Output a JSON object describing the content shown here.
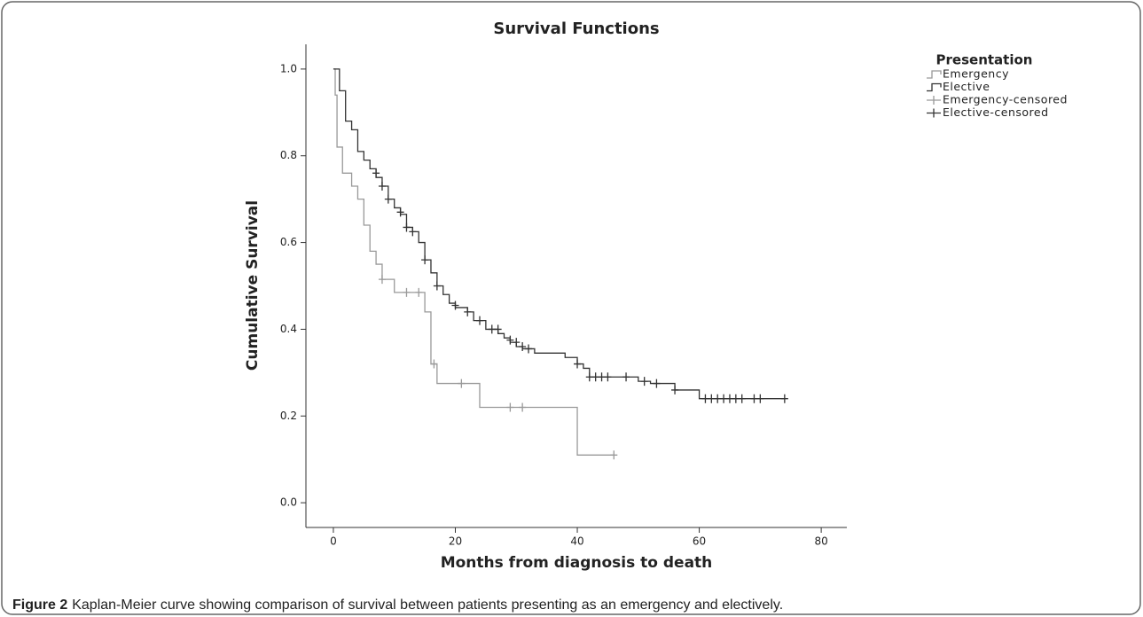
{
  "chart_data": {
    "type": "step",
    "title": "Survival Functions",
    "x_label": "Months from diagnosis to death",
    "y_label": "Cumulative Survival",
    "legend_title": "Presentation",
    "legend_position": "upper right",
    "caption_label": "Figure 2",
    "caption": "Kaplan-Meier curve showing comparison of survival between patients presenting as an emergency and electively.",
    "xlim": [
      -4.5,
      84.2
    ],
    "ylim": [
      -0.057,
      1.057
    ],
    "xticks": [
      0,
      20,
      40,
      60,
      80
    ],
    "yticks": [
      {
        "value": 0,
        "label": "0.0"
      },
      {
        "value": 0.2,
        "label": "0.2"
      },
      {
        "value": 0.4,
        "label": "0.4"
      },
      {
        "value": 0.6,
        "label": "0.6"
      },
      {
        "value": 0.8,
        "label": "0.8"
      },
      {
        "value": 1,
        "label": "1.0"
      }
    ],
    "series": [
      {
        "name": "Emergency",
        "style": "step",
        "color": "#999999",
        "x": [
          0,
          0.3,
          0.6,
          1.5,
          3,
          4,
          5,
          6,
          7,
          8,
          10,
          15,
          16,
          17,
          24,
          40,
          46
        ],
        "values": [
          1.0,
          0.94,
          0.82,
          0.76,
          0.73,
          0.7,
          0.64,
          0.58,
          0.55,
          0.515,
          0.485,
          0.44,
          0.32,
          0.275,
          0.22,
          0.11,
          0.11
        ]
      },
      {
        "name": "Elective",
        "style": "step",
        "color": "#333333",
        "x": [
          0,
          1,
          2,
          3,
          4,
          5,
          6,
          7,
          8,
          9,
          10,
          11,
          12,
          13,
          14,
          15,
          16,
          17,
          18,
          19,
          20,
          22,
          23,
          25,
          27,
          28,
          29,
          30,
          31,
          33,
          38,
          40,
          41,
          42,
          50,
          52,
          56,
          60,
          74
        ],
        "values": [
          1.0,
          0.95,
          0.88,
          0.86,
          0.81,
          0.79,
          0.77,
          0.75,
          0.73,
          0.7,
          0.68,
          0.665,
          0.635,
          0.625,
          0.6,
          0.56,
          0.53,
          0.5,
          0.48,
          0.46,
          0.45,
          0.44,
          0.42,
          0.4,
          0.39,
          0.38,
          0.37,
          0.36,
          0.355,
          0.345,
          0.335,
          0.32,
          0.31,
          0.29,
          0.28,
          0.275,
          0.26,
          0.24,
          0.24
        ]
      },
      {
        "name": "Emergency-censored",
        "style": "marker",
        "color": "#999999",
        "x": [
          8,
          12,
          14,
          16.5,
          21,
          29,
          31,
          46
        ],
        "values": [
          0.515,
          0.485,
          0.485,
          0.32,
          0.275,
          0.22,
          0.22,
          0.11
        ]
      },
      {
        "name": "Elective-censored",
        "style": "marker",
        "color": "#333333",
        "x": [
          7,
          8,
          9,
          11,
          12,
          13,
          15,
          17,
          20,
          22,
          24,
          26,
          27,
          29,
          30,
          31,
          32,
          40,
          42,
          43,
          44,
          45,
          48,
          51,
          53,
          56,
          61,
          62,
          63,
          64,
          65,
          66,
          67,
          69,
          70,
          74
        ],
        "values": [
          0.76,
          0.73,
          0.7,
          0.67,
          0.635,
          0.625,
          0.56,
          0.5,
          0.455,
          0.44,
          0.42,
          0.4,
          0.4,
          0.375,
          0.37,
          0.36,
          0.355,
          0.32,
          0.29,
          0.29,
          0.29,
          0.29,
          0.29,
          0.28,
          0.275,
          0.26,
          0.24,
          0.24,
          0.24,
          0.24,
          0.24,
          0.24,
          0.24,
          0.24,
          0.24,
          0.24
        ]
      }
    ]
  }
}
